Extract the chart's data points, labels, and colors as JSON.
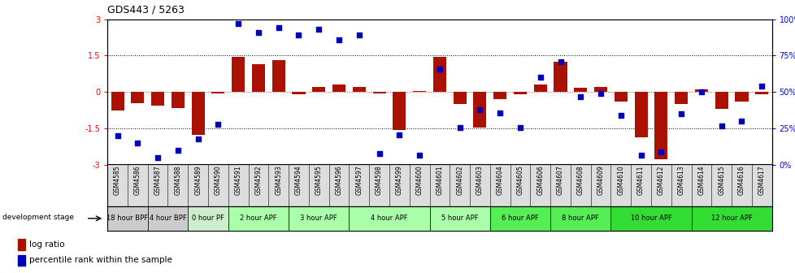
{
  "title": "GDS443 / 5263",
  "samples": [
    "GSM4585",
    "GSM4586",
    "GSM4587",
    "GSM4588",
    "GSM4589",
    "GSM4590",
    "GSM4591",
    "GSM4592",
    "GSM4593",
    "GSM4594",
    "GSM4595",
    "GSM4596",
    "GSM4597",
    "GSM4598",
    "GSM4599",
    "GSM4600",
    "GSM4601",
    "GSM4602",
    "GSM4603",
    "GSM4604",
    "GSM4605",
    "GSM4606",
    "GSM4607",
    "GSM4608",
    "GSM4609",
    "GSM4610",
    "GSM4611",
    "GSM4612",
    "GSM4613",
    "GSM4614",
    "GSM4615",
    "GSM4616",
    "GSM4617"
  ],
  "log_ratios": [
    -0.75,
    -0.45,
    -0.55,
    -0.65,
    -1.75,
    -0.05,
    1.45,
    1.15,
    1.3,
    -0.08,
    0.22,
    0.3,
    0.22,
    -0.05,
    -1.55,
    0.04,
    1.45,
    -0.5,
    -1.45,
    -0.3,
    -0.08,
    0.3,
    1.25,
    0.18,
    0.22,
    -0.4,
    -1.85,
    -2.75,
    -0.5,
    0.12,
    -0.7,
    -0.4,
    -0.08
  ],
  "percentile_ranks": [
    20,
    15,
    5,
    10,
    18,
    28,
    97,
    91,
    94,
    89,
    93,
    86,
    89,
    8,
    21,
    7,
    66,
    26,
    38,
    36,
    26,
    60,
    71,
    47,
    49,
    34,
    7,
    9,
    35,
    50,
    27,
    30,
    54
  ],
  "stage_groups": [
    {
      "label": "18 hour BPF",
      "start": 0,
      "end": 1,
      "color": "#cccccc"
    },
    {
      "label": "4 hour BPF",
      "start": 2,
      "end": 3,
      "color": "#cccccc"
    },
    {
      "label": "0 hour PF",
      "start": 4,
      "end": 5,
      "color": "#ccddcc"
    },
    {
      "label": "2 hour APF",
      "start": 6,
      "end": 8,
      "color": "#aaffaa"
    },
    {
      "label": "3 hour APF",
      "start": 9,
      "end": 11,
      "color": "#aaffaa"
    },
    {
      "label": "4 hour APF",
      "start": 12,
      "end": 15,
      "color": "#aaffaa"
    },
    {
      "label": "5 hour APF",
      "start": 16,
      "end": 18,
      "color": "#aaffaa"
    },
    {
      "label": "6 hour APF",
      "start": 19,
      "end": 21,
      "color": "#66dd66"
    },
    {
      "label": "8 hour APF",
      "start": 22,
      "end": 24,
      "color": "#66dd66"
    },
    {
      "label": "10 hour APF",
      "start": 25,
      "end": 28,
      "color": "#44cc44"
    },
    {
      "label": "12 hour APF",
      "start": 29,
      "end": 32,
      "color": "#44cc44"
    }
  ],
  "ylim_left": [
    -3,
    3
  ],
  "ylim_right": [
    0,
    100
  ],
  "bar_color": "#aa1100",
  "dot_color": "#0000bb",
  "hline_color": "#ff4444",
  "legend_log": "log ratio",
  "legend_pct": "percentile rank within the sample"
}
